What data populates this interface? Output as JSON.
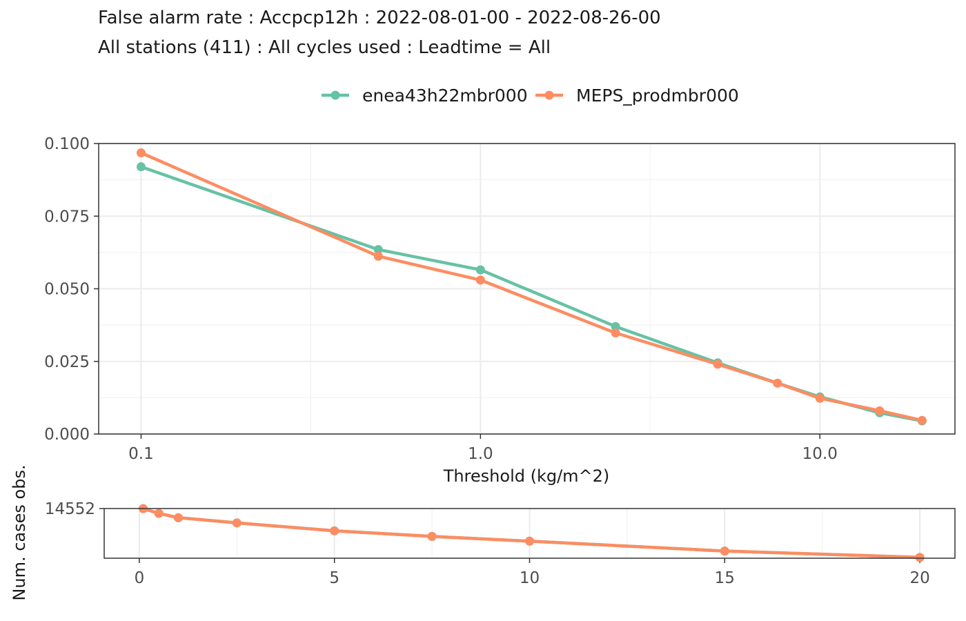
{
  "title": "False alarm rate : Accpcp12h : 2022-08-01-00 - 2022-08-26-00",
  "subtitle": "All stations (411) : All cycles used : Leadtime = All",
  "chart_data": [
    {
      "type": "line",
      "xlabel": "Threshold (kg/m^2)",
      "ylabel": "",
      "x_scale": "log10",
      "xlim": [
        0.075,
        25
      ],
      "ylim": [
        0,
        0.1
      ],
      "x_ticks": [
        0.1,
        1.0,
        10.0
      ],
      "x_tick_labels": [
        "0.1",
        "1.0",
        "10.0"
      ],
      "y_ticks": [
        0,
        0.025,
        0.05,
        0.075,
        0.1
      ],
      "y_tick_labels": [
        "0.000",
        "0.025",
        "0.050",
        "0.075",
        "0.100"
      ],
      "grid": true,
      "legend_position": "top",
      "x": [
        0.1,
        0.5,
        1,
        2.5,
        5,
        7.5,
        10,
        15,
        20
      ],
      "series": [
        {
          "name": "enea43h22mbr000",
          "color": "#66c2a5",
          "values": [
            0.092,
            0.0635,
            0.0565,
            0.037,
            0.0245,
            0.0175,
            0.0128,
            0.0073,
            0.0045
          ]
        },
        {
          "name": "MEPS_prodmbr000",
          "color": "#fc8d62",
          "values": [
            0.0968,
            0.0612,
            0.053,
            0.0348,
            0.024,
            0.0175,
            0.0123,
            0.008,
            0.0047
          ]
        }
      ]
    },
    {
      "type": "line",
      "xlabel": "",
      "ylabel": "Num. cases obs.",
      "xlim": [
        -0.9,
        20.9
      ],
      "ylim": [
        8300,
        14560
      ],
      "x_ticks": [
        0,
        5,
        10,
        15,
        20
      ],
      "x_tick_labels": [
        "0",
        "5",
        "10",
        "15",
        "20"
      ],
      "y_ticks": [
        14552
      ],
      "y_tick_labels": [
        "14552"
      ],
      "grid": true,
      "x": [
        0.1,
        0.5,
        1,
        2.5,
        5,
        7.5,
        10,
        15,
        20
      ],
      "series": [
        {
          "name": "enea43h22mbr000",
          "color": "#66c2a5",
          "values": [
            14552,
            13950,
            13400,
            12750,
            11750,
            11050,
            10450,
            9200,
            8400
          ]
        },
        {
          "name": "MEPS_prodmbr000",
          "color": "#fc8d62",
          "values": [
            14552,
            13950,
            13400,
            12750,
            11750,
            11050,
            10450,
            9200,
            8400
          ]
        }
      ]
    }
  ]
}
